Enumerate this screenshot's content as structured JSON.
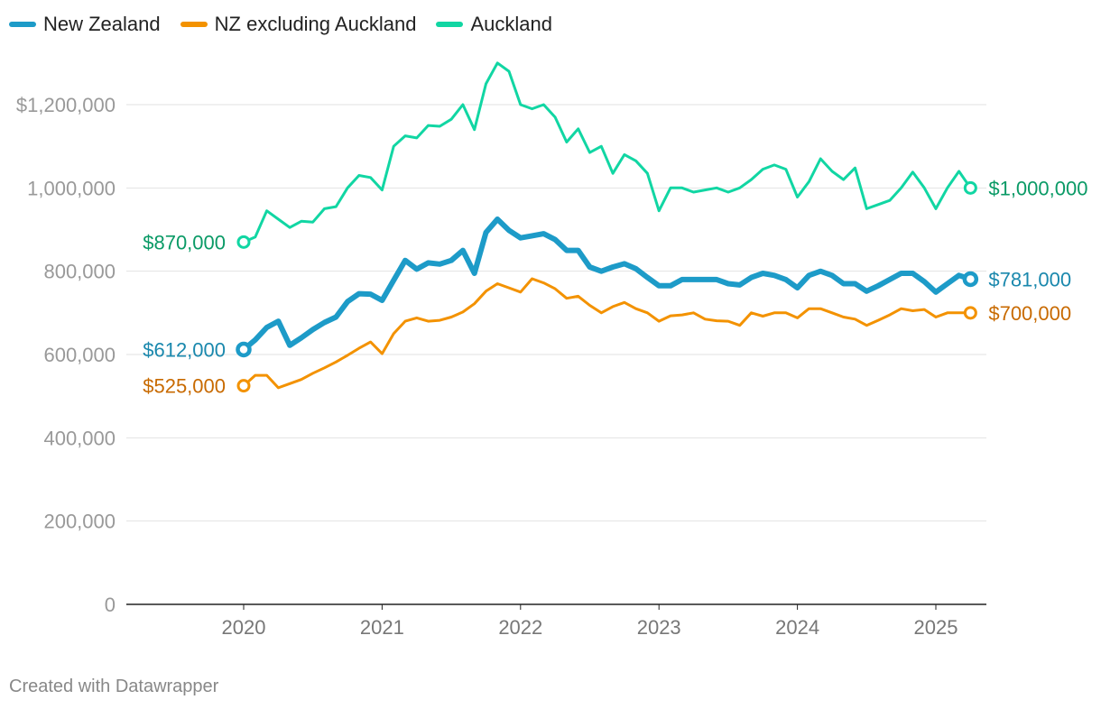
{
  "legend": [
    {
      "name": "New Zealand",
      "color": "#1d9bc8"
    },
    {
      "name": "NZ excluding Auckland",
      "color": "#f39200"
    },
    {
      "name": "Auckland",
      "color": "#11d6a3"
    }
  ],
  "footer": "Created with Datawrapper",
  "chart_data": {
    "type": "line",
    "title": "",
    "xlabel": "",
    "ylabel": "",
    "ylim": [
      0,
      1300000
    ],
    "y_ticks": [
      {
        "value": 0,
        "label": "0"
      },
      {
        "value": 200000,
        "label": "200,000"
      },
      {
        "value": 400000,
        "label": "400,000"
      },
      {
        "value": 600000,
        "label": "600,000"
      },
      {
        "value": 800000,
        "label": "800,000"
      },
      {
        "value": 1000000,
        "label": "1,000,000"
      },
      {
        "value": 1200000,
        "label": "$1,200,000"
      }
    ],
    "x_ticks": [
      "2020",
      "2021",
      "2022",
      "2023",
      "2024",
      "2025"
    ],
    "x_range": [
      "2019-05",
      "2025-08"
    ],
    "grid": true,
    "legend_position": "top-left",
    "series": [
      {
        "name": "New Zealand",
        "color": "#1d9bc8",
        "start_label": "$612,000",
        "end_label": "$781,000",
        "start_month": "2020-01",
        "values": [
          612000,
          635000,
          665000,
          680000,
          622000,
          640000,
          660000,
          677000,
          690000,
          727000,
          746000,
          745000,
          730000,
          778000,
          826000,
          805000,
          820000,
          817000,
          826000,
          850000,
          795000,
          893000,
          925000,
          898000,
          880000,
          885000,
          890000,
          876000,
          850000,
          850000,
          810000,
          800000,
          810000,
          818000,
          806000,
          785000,
          765000,
          765000,
          780000,
          780000,
          780000,
          780000,
          770000,
          767000,
          785000,
          795000,
          790000,
          780000,
          760000,
          790000,
          800000,
          790000,
          770000,
          770000,
          752000,
          765000,
          780000,
          795000,
          795000,
          775000,
          750000,
          770000,
          790000,
          781000
        ]
      },
      {
        "name": "NZ excluding Auckland",
        "color": "#f39200",
        "start_label": "$525,000",
        "end_label": "$700,000",
        "start_month": "2020-01",
        "values": [
          525000,
          550000,
          550000,
          520000,
          530000,
          540000,
          555000,
          568000,
          582000,
          598000,
          615000,
          630000,
          602000,
          650000,
          680000,
          688000,
          680000,
          682000,
          690000,
          702000,
          722000,
          752000,
          770000,
          760000,
          750000,
          782000,
          772000,
          758000,
          735000,
          740000,
          718000,
          700000,
          715000,
          725000,
          710000,
          700000,
          680000,
          693000,
          695000,
          700000,
          685000,
          681000,
          680000,
          670000,
          700000,
          692000,
          700000,
          700000,
          688000,
          710000,
          710000,
          700000,
          690000,
          685000,
          670000,
          682000,
          695000,
          710000,
          705000,
          708000,
          690000,
          700000,
          700000,
          700000
        ]
      },
      {
        "name": "Auckland",
        "color": "#11d6a3",
        "start_label": "$870,000",
        "end_label": "$1,000,000",
        "start_month": "2020-01",
        "values": [
          870000,
          882000,
          945000,
          925000,
          905000,
          920000,
          918000,
          950000,
          955000,
          1000000,
          1030000,
          1025000,
          995000,
          1100000,
          1125000,
          1120000,
          1150000,
          1148000,
          1165000,
          1200000,
          1140000,
          1250000,
          1300000,
          1280000,
          1200000,
          1190000,
          1200000,
          1170000,
          1110000,
          1142000,
          1085000,
          1100000,
          1035000,
          1080000,
          1065000,
          1035000,
          945000,
          1000000,
          1000000,
          990000,
          995000,
          1000000,
          990000,
          1000000,
          1020000,
          1045000,
          1055000,
          1045000,
          978000,
          1015000,
          1070000,
          1040000,
          1020000,
          1048000,
          950000,
          960000,
          970000,
          1000000,
          1038000,
          1000000,
          950000,
          1000000,
          1040000,
          1000000
        ]
      }
    ]
  }
}
